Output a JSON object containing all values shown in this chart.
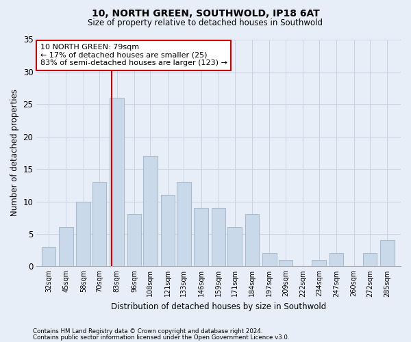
{
  "title1": "10, NORTH GREEN, SOUTHWOLD, IP18 6AT",
  "title2": "Size of property relative to detached houses in Southwold",
  "xlabel": "Distribution of detached houses by size in Southwold",
  "ylabel": "Number of detached properties",
  "categories": [
    "32sqm",
    "45sqm",
    "58sqm",
    "70sqm",
    "83sqm",
    "96sqm",
    "108sqm",
    "121sqm",
    "133sqm",
    "146sqm",
    "159sqm",
    "171sqm",
    "184sqm",
    "197sqm",
    "209sqm",
    "222sqm",
    "234sqm",
    "247sqm",
    "260sqm",
    "272sqm",
    "285sqm"
  ],
  "values": [
    3,
    6,
    10,
    13,
    26,
    8,
    17,
    11,
    13,
    9,
    9,
    6,
    8,
    2,
    1,
    0,
    1,
    2,
    0,
    2,
    4
  ],
  "bar_color": "#c9d9ea",
  "bar_edge_color": "#a8bece",
  "grid_color": "#c8d4e4",
  "annotation_text": "10 NORTH GREEN: 79sqm\n← 17% of detached houses are smaller (25)\n83% of semi-detached houses are larger (123) →",
  "annotation_box_color": "#ffffff",
  "annotation_box_edge": "#cc0000",
  "vline_color": "#cc0000",
  "vline_x": 79,
  "ylim": [
    0,
    35
  ],
  "yticks": [
    0,
    5,
    10,
    15,
    20,
    25,
    30,
    35
  ],
  "bg_color": "#e8eef8",
  "plot_bg_color": "#e8eef8",
  "footer1": "Contains HM Land Registry data © Crown copyright and database right 2024.",
  "footer2": "Contains public sector information licensed under the Open Government Licence v3.0."
}
